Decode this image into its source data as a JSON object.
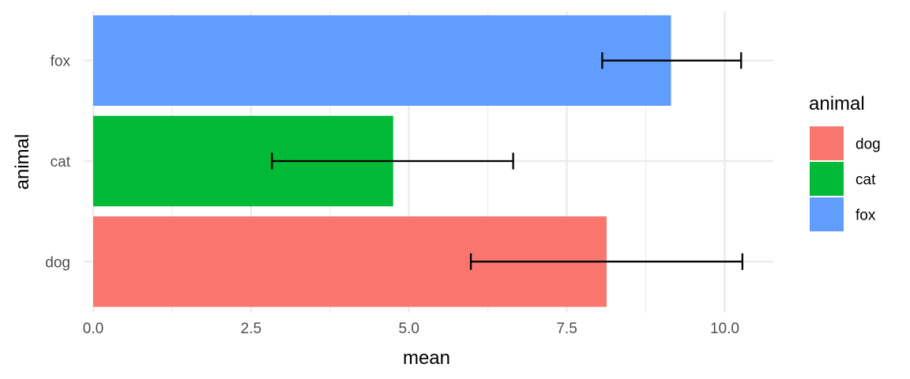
{
  "chart_data": {
    "type": "bar",
    "orientation": "horizontal",
    "categories": [
      "dog",
      "cat",
      "fox"
    ],
    "values": [
      8.13,
      4.75,
      9.15
    ],
    "error_low": [
      5.98,
      2.83,
      8.06
    ],
    "error_high": [
      10.28,
      6.65,
      10.26
    ],
    "colors": [
      "#F8766D",
      "#00BA38",
      "#619CFF"
    ],
    "xlabel": "mean",
    "ylabel": "animal",
    "xlim": [
      -0.15,
      10.77
    ],
    "x_ticks": [
      "0.0",
      "2.5",
      "5.0",
      "7.5",
      "10.0"
    ],
    "x_tick_values": [
      0,
      2.5,
      5,
      7.5,
      10
    ],
    "x_minor_grid": [
      1.25,
      3.75,
      6.25,
      8.75
    ],
    "grid": true,
    "legend": {
      "title": "animal",
      "position": "right",
      "entries": [
        "dog",
        "cat",
        "fox"
      ]
    }
  }
}
